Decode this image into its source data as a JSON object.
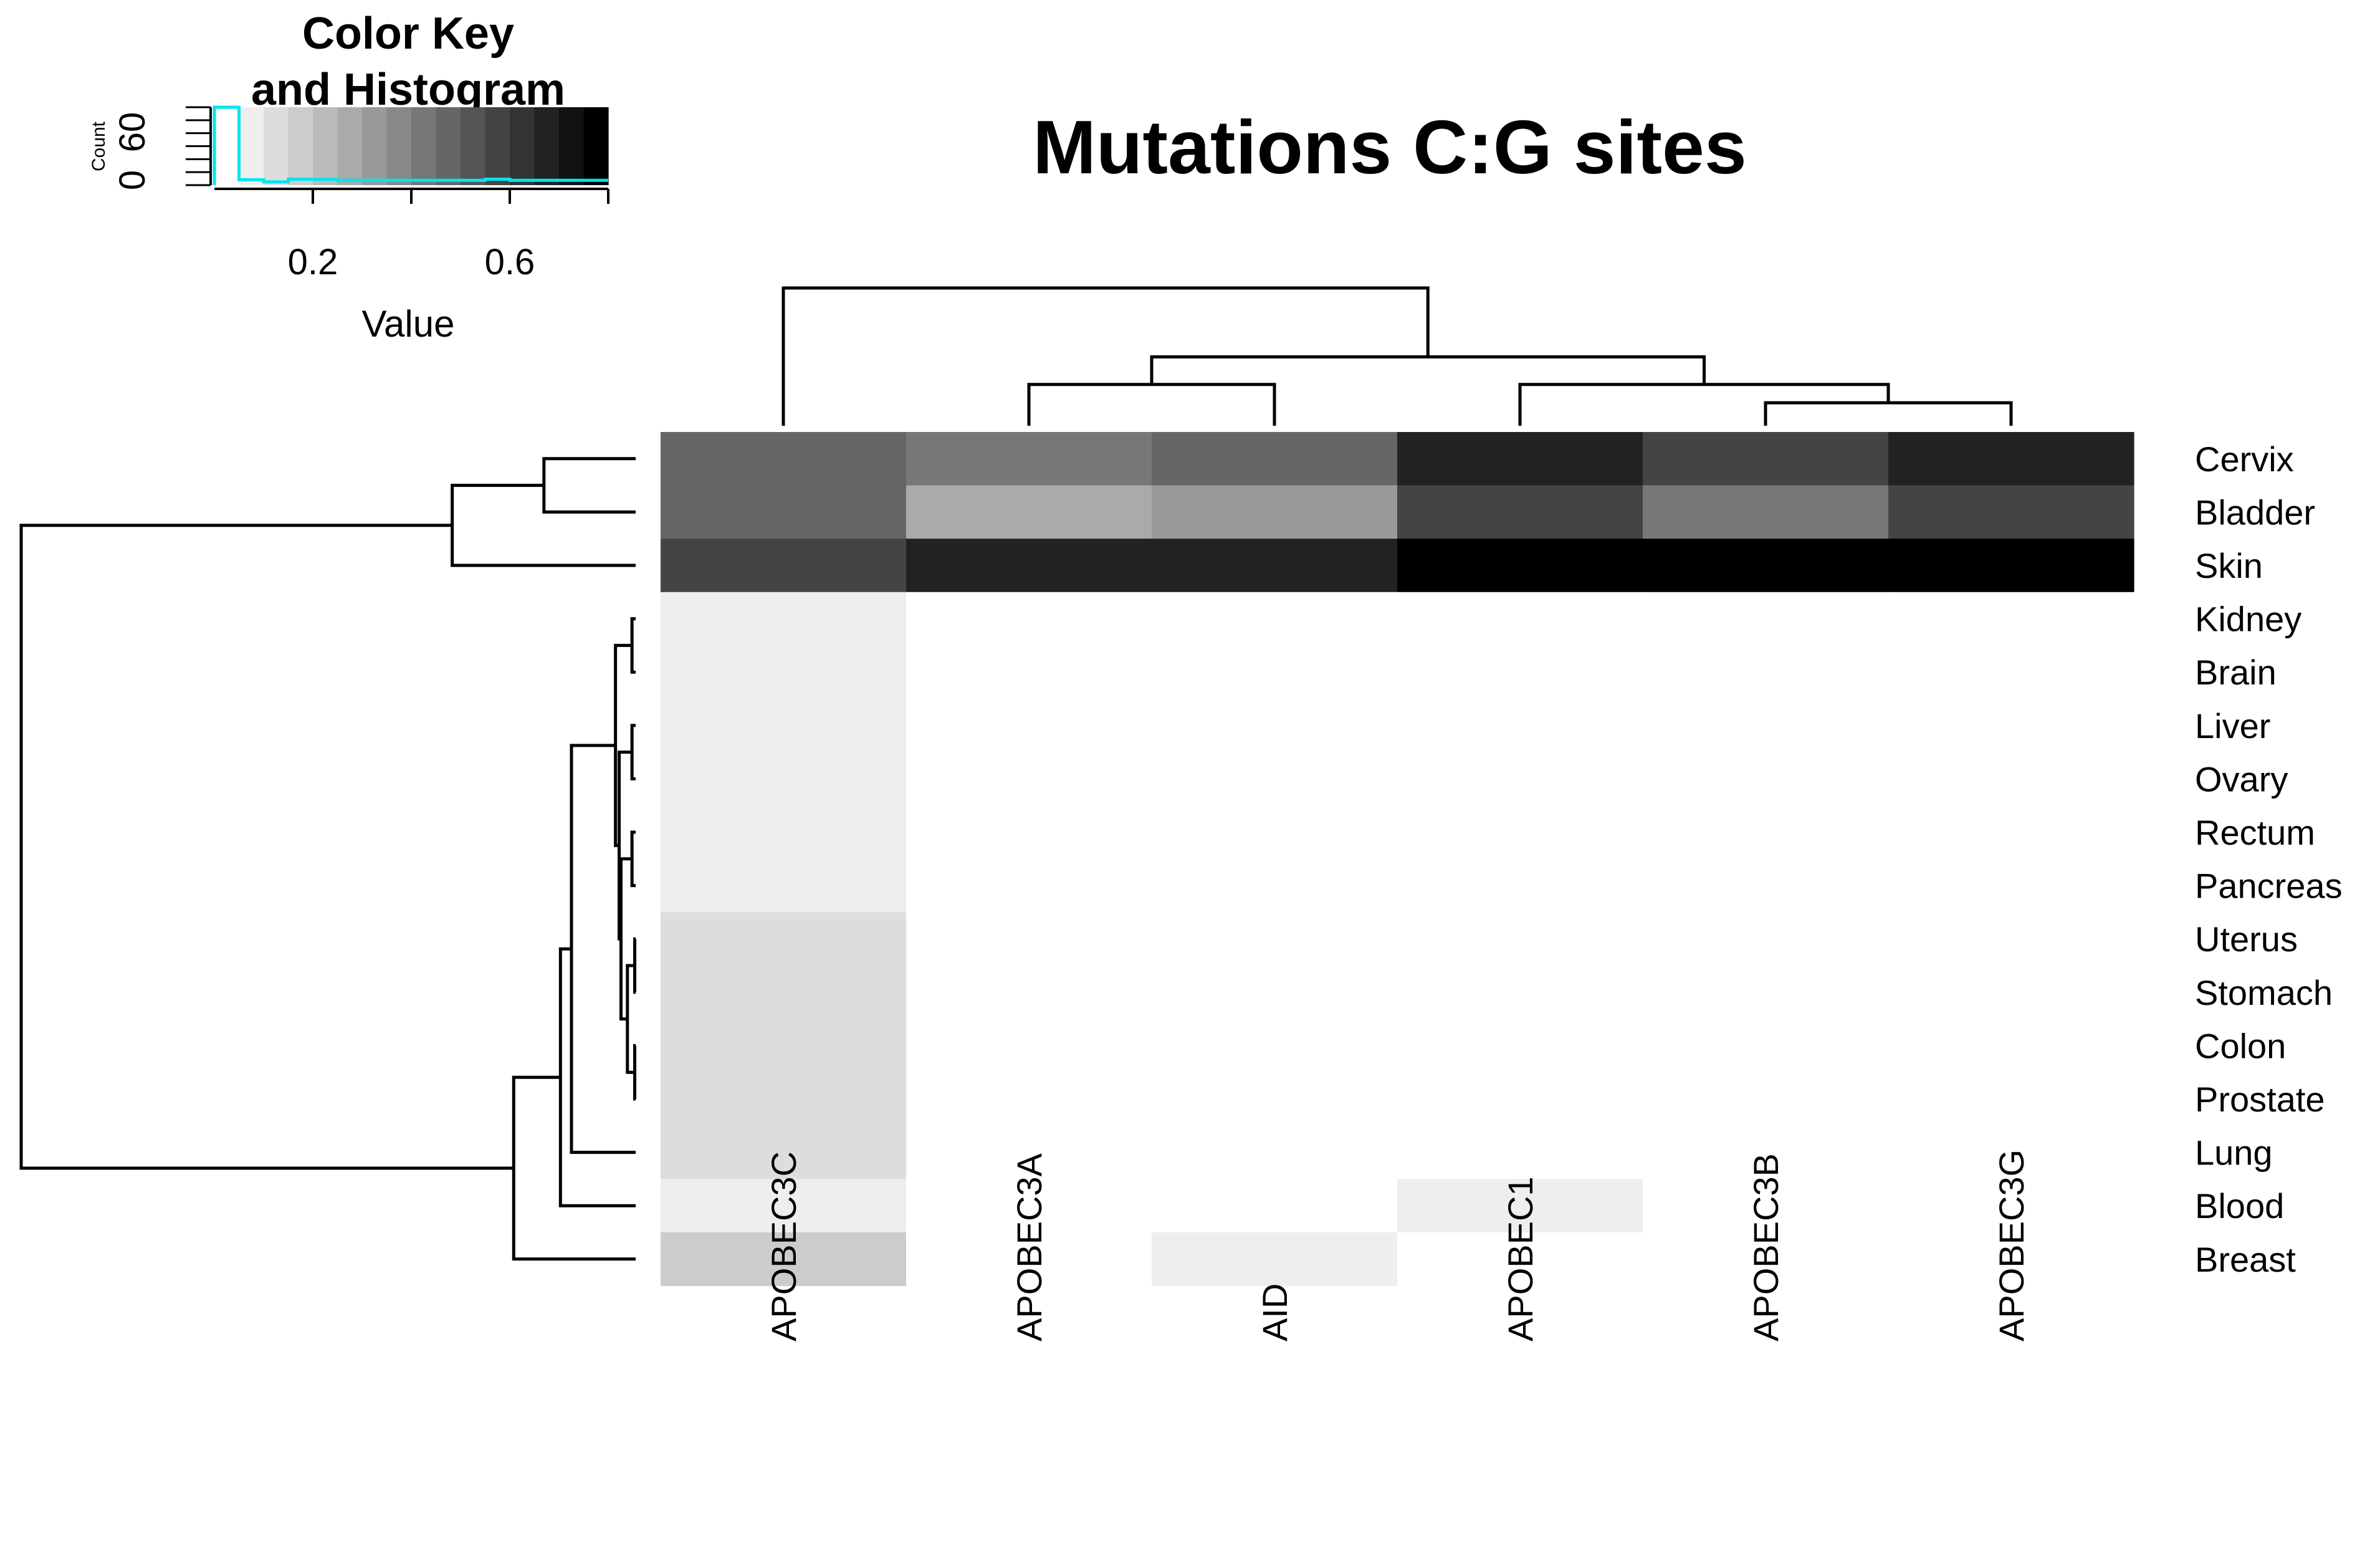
{
  "chart_data": {
    "type": "heatmap",
    "title": "Mutations C:G sites",
    "color_key": {
      "title_line1": "Color Key",
      "title_line2": "and Histogram",
      "xlabel": "Value",
      "ylabel": "Count",
      "xticks": [
        "0.2",
        "0.6"
      ],
      "xtick_values": [
        0.2,
        0.6
      ],
      "yticks": [
        "0",
        "60"
      ],
      "ytick_values": [
        0,
        60
      ],
      "range": [
        0.0,
        0.8
      ],
      "n_colors": 16,
      "low_color": "#ffffff",
      "high_color": "#000000",
      "histogram_color": "#00e5ee",
      "histogram_counts": [
        72,
        5,
        3,
        2,
        2,
        1,
        1,
        1,
        1,
        1,
        1,
        2,
        1,
        1,
        1,
        1
      ],
      "histogram_max": 72
    },
    "columns": [
      "APOBEC3C",
      "APOBEC3A",
      "AID",
      "APOBEC1",
      "APOBEC3B",
      "APOBEC3G"
    ],
    "rows": [
      "Cervix",
      "Bladder",
      "Skin",
      "Kidney",
      "Brain",
      "Liver",
      "Ovary",
      "Rectum",
      "Pancreas",
      "Uterus",
      "Stomach",
      "Colon",
      "Prostate",
      "Lung",
      "Blood",
      "Breast"
    ],
    "values": [
      [
        0.48,
        0.4,
        0.48,
        0.66,
        0.56,
        0.7
      ],
      [
        0.48,
        0.25,
        0.32,
        0.56,
        0.4,
        0.56
      ],
      [
        0.56,
        0.7,
        0.66,
        0.8,
        0.8,
        0.8
      ],
      [
        0.08,
        0.0,
        0.0,
        0.0,
        0.0,
        0.0
      ],
      [
        0.08,
        0.0,
        0.0,
        0.0,
        0.0,
        0.0
      ],
      [
        0.06,
        0.0,
        0.0,
        0.0,
        0.0,
        0.0
      ],
      [
        0.06,
        0.0,
        0.0,
        0.0,
        0.0,
        0.0
      ],
      [
        0.08,
        0.0,
        0.0,
        0.0,
        0.0,
        0.0
      ],
      [
        0.08,
        0.0,
        0.0,
        0.0,
        0.0,
        0.0
      ],
      [
        0.1,
        0.0,
        0.0,
        0.0,
        0.0,
        0.0
      ],
      [
        0.1,
        0.0,
        0.0,
        0.0,
        0.0,
        0.0
      ],
      [
        0.1,
        0.0,
        0.0,
        0.0,
        0.0,
        0.0
      ],
      [
        0.1,
        0.0,
        0.0,
        0.0,
        0.0,
        0.0
      ],
      [
        0.13,
        0.0,
        0.03,
        0.03,
        0.0,
        0.0
      ],
      [
        0.06,
        0.0,
        0.0,
        0.08,
        0.0,
        0.0
      ],
      [
        0.16,
        0.03,
        0.08,
        0.0,
        0.0,
        0.03
      ]
    ],
    "row_dendrogram": [
      [
        "a",
        "Cervix",
        "Bladder",
        0.1
      ],
      [
        "b",
        "a",
        "Skin",
        0.2
      ],
      [
        "c",
        "Kidney",
        "Brain",
        0.004
      ],
      [
        "d",
        "Liver",
        "Ovary",
        0.004
      ],
      [
        "e",
        "Rectum",
        "Pancreas",
        0.004
      ],
      [
        "f",
        "Uterus",
        "Stomach",
        0.001
      ],
      [
        "g",
        "Colon",
        "Prostate",
        0.001
      ],
      [
        "h",
        "f",
        "g",
        0.009
      ],
      [
        "i",
        "e",
        "h",
        0.016
      ],
      [
        "j",
        "d",
        "i",
        0.018
      ],
      [
        "k",
        "c",
        "j",
        0.022
      ],
      [
        "l",
        "k",
        "Lung",
        0.07
      ],
      [
        "m",
        "l",
        "Blood",
        0.082
      ],
      [
        "n",
        "m",
        "Breast",
        0.133
      ],
      [
        "o",
        "b",
        "n",
        0.67
      ]
    ],
    "col_dendrogram": [
      [
        "a",
        "APOBEC3B",
        "APOBEC3G",
        0.1
      ],
      [
        "b",
        "APOBEC1",
        "a",
        0.18
      ],
      [
        "c",
        "APOBEC3A",
        "AID",
        0.18
      ],
      [
        "d",
        "c",
        "b",
        0.3
      ],
      [
        "e",
        "APOBEC3C",
        "d",
        0.6
      ]
    ]
  }
}
